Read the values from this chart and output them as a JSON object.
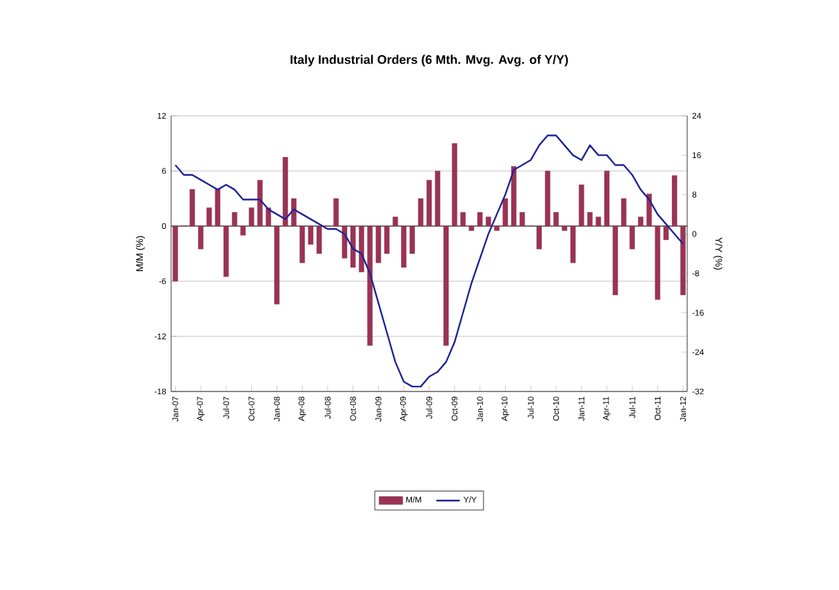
{
  "chart_data": {
    "type": "bar",
    "title": "Italy Industrial Orders (6 Mth. Mvg. Avg. of Y/Y)",
    "ylabel": "M/M (%)",
    "y2label": "Y/Y (%)",
    "categories": [
      "Jan-07",
      null,
      null,
      "Apr-07",
      null,
      null,
      "Jul-07",
      null,
      null,
      "Oct-07",
      null,
      null,
      "Jan-08",
      null,
      null,
      "Apr-08",
      null,
      null,
      "Jul-08",
      null,
      null,
      "Oct-08",
      null,
      null,
      "Jan-09",
      null,
      null,
      "Apr-09",
      null,
      null,
      "Jul-09",
      null,
      null,
      "Oct-09",
      null,
      null,
      "Jan-10",
      null,
      null,
      "Apr-10",
      null,
      null,
      "Jul-10",
      null,
      null,
      "Oct-10",
      null,
      null,
      "Jan-11",
      null,
      null,
      "Apr-11",
      null,
      null,
      "Jul-11",
      null,
      null,
      "Oct-11",
      null,
      null,
      "Jan-12"
    ],
    "series": [
      {
        "name": "M/M",
        "color": "#993355",
        "values": [
          -6,
          0,
          4,
          -2.5,
          2,
          4,
          -5.5,
          1.5,
          -1,
          2,
          5,
          2,
          -8.5,
          7.5,
          3,
          -4,
          -2,
          -3,
          0,
          3,
          -3.5,
          -4.5,
          -5,
          -13,
          -4,
          -3,
          1,
          -4.5,
          -3,
          3,
          5,
          6,
          -13,
          9,
          1.5,
          -0.5,
          1.5,
          1,
          -0.5,
          3,
          6.5,
          1.5,
          0,
          -2.5,
          6,
          1.5,
          -0.5,
          -4,
          4.5,
          1.5,
          1,
          6,
          -7.5,
          3,
          -2.5,
          1,
          3.5,
          -8,
          -1.5,
          5.5,
          -7.5
        ]
      },
      {
        "name": "Y/Y",
        "type": "line",
        "axis": "y2",
        "color": "#1f2396",
        "values": [
          14,
          12,
          12,
          11,
          10,
          9,
          10,
          9,
          7,
          7,
          7,
          5,
          4,
          3,
          5,
          4,
          3,
          2,
          1,
          1,
          0,
          -3,
          -4,
          -8,
          -14,
          -20,
          -26,
          -30,
          -31,
          -31,
          -29,
          -28,
          -26,
          -22,
          -16,
          -10,
          -5,
          0,
          4,
          8,
          13,
          14,
          15,
          18,
          20,
          20,
          18,
          16,
          15,
          18,
          16,
          16,
          14,
          14,
          12,
          9,
          7,
          4,
          2,
          0,
          -2
        ]
      }
    ],
    "ylim": [
      -18,
      12
    ],
    "yticks": [
      -18,
      -12,
      -6,
      0,
      6,
      12
    ],
    "y2lim": [
      -32,
      24
    ],
    "y2ticks": [
      -32,
      -24,
      -16,
      -8,
      0,
      8,
      16,
      24
    ],
    "grid": "y",
    "legend": "bottom"
  }
}
